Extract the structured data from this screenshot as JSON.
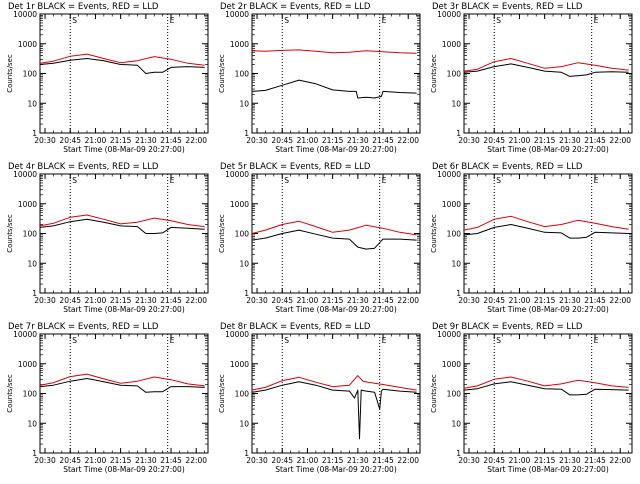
{
  "colors": {
    "events": "#000000",
    "lld": "#e00000",
    "axis": "#000000"
  },
  "chart_data": [
    {
      "type": "line",
      "title": "Det 1r BLACK = Events, RED = LLD",
      "xlabel": "Start Time (08-Mar-09 20:27:00)",
      "ylabel": "Counts/sec",
      "yscale": "log",
      "ylim": [
        1,
        10000
      ],
      "ytick_labels": [
        "1",
        "10",
        "100",
        "1000",
        "10000"
      ],
      "xticks": [
        "20:30",
        "20:45",
        "21:00",
        "21:15",
        "21:30",
        "21:45",
        "22:00"
      ],
      "vlines": [
        "20:45",
        "21:43"
      ],
      "marker_labels": [
        "S",
        "E"
      ],
      "series": [
        {
          "name": "Events",
          "color": "#000000",
          "x": [
            "20:27",
            "20:35",
            "20:45",
            "20:55",
            "21:05",
            "21:15",
            "21:25",
            "21:30",
            "21:35",
            "21:40",
            "21:45",
            "21:55",
            "22:05"
          ],
          "values": [
            200,
            220,
            280,
            320,
            270,
            200,
            190,
            100,
            110,
            110,
            160,
            170,
            160
          ]
        },
        {
          "name": "LLD",
          "color": "#e00000",
          "x": [
            "20:27",
            "20:35",
            "20:45",
            "20:55",
            "21:05",
            "21:15",
            "21:25",
            "21:35",
            "21:45",
            "21:55",
            "22:05"
          ],
          "values": [
            220,
            260,
            380,
            450,
            320,
            230,
            270,
            370,
            300,
            220,
            190
          ]
        }
      ]
    },
    {
      "type": "line",
      "title": "Det 2r BLACK = Events, RED = LLD",
      "xlabel": "Start Time (08-Mar-09 20:27:00)",
      "ylabel": "Counts/sec",
      "yscale": "log",
      "ylim": [
        1,
        10000
      ],
      "ytick_labels": [
        "1",
        "10",
        "100",
        "1000",
        "10000"
      ],
      "xticks": [
        "20:30",
        "20:45",
        "21:00",
        "21:15",
        "21:30",
        "21:45",
        "22:00"
      ],
      "vlines": [
        "20:45",
        "21:43"
      ],
      "marker_labels": [
        "S",
        "E"
      ],
      "series": [
        {
          "name": "Events",
          "color": "#000000",
          "x": [
            "20:27",
            "20:35",
            "20:45",
            "20:55",
            "21:05",
            "21:15",
            "21:25",
            "21:29",
            "21:30",
            "21:35",
            "21:40",
            "21:44",
            "21:45",
            "21:55",
            "22:05"
          ],
          "values": [
            25,
            27,
            40,
            60,
            45,
            28,
            25,
            25,
            15,
            16,
            15,
            17,
            25,
            23,
            22
          ]
        },
        {
          "name": "LLD",
          "color": "#e00000",
          "x": [
            "20:27",
            "20:35",
            "20:45",
            "20:55",
            "21:05",
            "21:15",
            "21:25",
            "21:35",
            "21:45",
            "21:55",
            "22:05"
          ],
          "values": [
            580,
            560,
            600,
            620,
            560,
            500,
            520,
            580,
            540,
            500,
            480
          ]
        }
      ]
    },
    {
      "type": "line",
      "title": "Det 3r BLACK = Events, RED = LLD",
      "xlabel": "Start Time (08-Mar-09 20:27:00)",
      "ylabel": "Counts/sec",
      "yscale": "log",
      "ylim": [
        1,
        10000
      ],
      "ytick_labels": [
        "1",
        "10",
        "100",
        "1000",
        "10000"
      ],
      "xticks": [
        "20:30",
        "20:45",
        "21:00",
        "21:15",
        "21:30",
        "21:45",
        "22:00"
      ],
      "vlines": [
        "20:45",
        "21:43"
      ],
      "marker_labels": [
        "S",
        "E"
      ],
      "series": [
        {
          "name": "Events",
          "color": "#000000",
          "x": [
            "20:27",
            "20:35",
            "20:45",
            "20:55",
            "21:05",
            "21:15",
            "21:25",
            "21:30",
            "21:35",
            "21:40",
            "21:45",
            "21:55",
            "22:05"
          ],
          "values": [
            110,
            120,
            170,
            210,
            160,
            120,
            110,
            80,
            85,
            90,
            110,
            115,
            110
          ]
        },
        {
          "name": "LLD",
          "color": "#e00000",
          "x": [
            "20:27",
            "20:35",
            "20:45",
            "20:55",
            "21:05",
            "21:15",
            "21:25",
            "21:35",
            "21:45",
            "21:55",
            "22:05"
          ],
          "values": [
            120,
            140,
            250,
            320,
            220,
            150,
            170,
            230,
            190,
            150,
            130
          ]
        }
      ]
    },
    {
      "type": "line",
      "title": "Det 4r BLACK = Events, RED = LLD",
      "xlabel": "Start Time (08-Mar-09 20:27:00)",
      "ylabel": "Counts/sec",
      "yscale": "log",
      "ylim": [
        1,
        10000
      ],
      "ytick_labels": [
        "1",
        "10",
        "100",
        "1000",
        "10000"
      ],
      "xticks": [
        "20:30",
        "20:45",
        "21:00",
        "21:15",
        "21:30",
        "21:45",
        "22:00"
      ],
      "vlines": [
        "20:45",
        "21:43"
      ],
      "marker_labels": [
        "S",
        "E"
      ],
      "series": [
        {
          "name": "Events",
          "color": "#000000",
          "x": [
            "20:27",
            "20:35",
            "20:45",
            "20:55",
            "21:05",
            "21:15",
            "21:25",
            "21:30",
            "21:35",
            "21:40",
            "21:45",
            "21:55",
            "22:05"
          ],
          "values": [
            160,
            180,
            250,
            300,
            240,
            180,
            170,
            100,
            100,
            105,
            160,
            150,
            140
          ]
        },
        {
          "name": "LLD",
          "color": "#e00000",
          "x": [
            "20:27",
            "20:35",
            "20:45",
            "20:55",
            "21:05",
            "21:15",
            "21:25",
            "21:35",
            "21:45",
            "21:55",
            "22:05"
          ],
          "values": [
            180,
            220,
            350,
            420,
            300,
            210,
            240,
            330,
            270,
            200,
            170
          ]
        }
      ]
    },
    {
      "type": "line",
      "title": "Det 5r BLACK = Events, RED = LLD",
      "xlabel": "Start Time (08-Mar-09 20:27:00)",
      "ylabel": "Counts/sec",
      "yscale": "log",
      "ylim": [
        1,
        10000
      ],
      "ytick_labels": [
        "1",
        "10",
        "100",
        "1000",
        "10000"
      ],
      "xticks": [
        "20:30",
        "20:45",
        "21:00",
        "21:15",
        "21:30",
        "21:45",
        "22:00"
      ],
      "vlines": [
        "20:45",
        "21:43"
      ],
      "marker_labels": [
        "S",
        "E"
      ],
      "series": [
        {
          "name": "Events",
          "color": "#000000",
          "x": [
            "20:27",
            "20:35",
            "20:45",
            "20:55",
            "21:05",
            "21:15",
            "21:25",
            "21:30",
            "21:35",
            "21:40",
            "21:45",
            "21:55",
            "22:05"
          ],
          "values": [
            60,
            70,
            100,
            130,
            95,
            70,
            65,
            35,
            30,
            32,
            65,
            65,
            60
          ]
        },
        {
          "name": "LLD",
          "color": "#e00000",
          "x": [
            "20:27",
            "20:35",
            "20:45",
            "20:55",
            "21:05",
            "21:15",
            "21:25",
            "21:35",
            "21:45",
            "21:55",
            "22:05"
          ],
          "values": [
            100,
            130,
            200,
            260,
            170,
            110,
            130,
            190,
            150,
            110,
            90
          ]
        }
      ]
    },
    {
      "type": "line",
      "title": "Det 6r BLACK = Events, RED = LLD",
      "xlabel": "Start Time (08-Mar-09 20:27:00)",
      "ylabel": "Counts/sec",
      "yscale": "log",
      "ylim": [
        1,
        10000
      ],
      "ytick_labels": [
        "1",
        "10",
        "100",
        "1000",
        "10000"
      ],
      "xticks": [
        "20:30",
        "20:45",
        "21:00",
        "21:15",
        "21:30",
        "21:45",
        "22:00"
      ],
      "vlines": [
        "20:45",
        "21:43"
      ],
      "marker_labels": [
        "S",
        "E"
      ],
      "series": [
        {
          "name": "Events",
          "color": "#000000",
          "x": [
            "20:27",
            "20:35",
            "20:45",
            "20:55",
            "21:05",
            "21:15",
            "21:25",
            "21:30",
            "21:35",
            "21:40",
            "21:45",
            "21:55",
            "22:05"
          ],
          "values": [
            90,
            100,
            160,
            200,
            150,
            110,
            105,
            70,
            70,
            75,
            110,
            105,
            100
          ]
        },
        {
          "name": "LLD",
          "color": "#e00000",
          "x": [
            "20:27",
            "20:35",
            "20:45",
            "20:55",
            "21:05",
            "21:15",
            "21:25",
            "21:35",
            "21:45",
            "21:55",
            "22:05"
          ],
          "values": [
            130,
            160,
            300,
            380,
            250,
            170,
            200,
            280,
            220,
            170,
            140
          ]
        }
      ]
    },
    {
      "type": "line",
      "title": "Det 7r BLACK = Events, RED = LLD",
      "xlabel": "Start Time (08-Mar-09 20:27:00)",
      "ylabel": "Counts/sec",
      "yscale": "log",
      "ylim": [
        1,
        10000
      ],
      "ytick_labels": [
        "1",
        "10",
        "100",
        "1000",
        "10000"
      ],
      "xticks": [
        "20:30",
        "20:45",
        "21:00",
        "21:15",
        "21:30",
        "21:45",
        "22:00"
      ],
      "vlines": [
        "20:45",
        "21:43"
      ],
      "marker_labels": [
        "S",
        "E"
      ],
      "series": [
        {
          "name": "Events",
          "color": "#000000",
          "x": [
            "20:27",
            "20:35",
            "20:45",
            "20:55",
            "21:05",
            "21:15",
            "21:25",
            "21:30",
            "21:35",
            "21:40",
            "21:45",
            "21:55",
            "22:05"
          ],
          "values": [
            170,
            190,
            260,
            320,
            250,
            190,
            180,
            110,
            115,
            115,
            170,
            170,
            160
          ]
        },
        {
          "name": "LLD",
          "color": "#e00000",
          "x": [
            "20:27",
            "20:35",
            "20:45",
            "20:55",
            "21:05",
            "21:15",
            "21:25",
            "21:35",
            "21:45",
            "21:55",
            "22:05"
          ],
          "values": [
            190,
            230,
            370,
            450,
            310,
            220,
            260,
            360,
            290,
            210,
            180
          ]
        }
      ]
    },
    {
      "type": "line",
      "title": "Det 8r BLACK = Events, RED = LLD",
      "xlabel": "Start Time (08-Mar-09 20:27:00)",
      "ylabel": "Counts/sec",
      "yscale": "log",
      "ylim": [
        1,
        10000
      ],
      "ytick_labels": [
        "1",
        "10",
        "100",
        "1000",
        "10000"
      ],
      "xticks": [
        "20:30",
        "20:45",
        "21:00",
        "21:15",
        "21:30",
        "21:45",
        "22:00"
      ],
      "vlines": [
        "20:45",
        "21:43"
      ],
      "marker_labels": [
        "S",
        "E"
      ],
      "series": [
        {
          "name": "Events",
          "color": "#000000",
          "x": [
            "20:27",
            "20:35",
            "20:45",
            "20:55",
            "21:05",
            "21:15",
            "21:25",
            "21:28",
            "21:30",
            "21:31",
            "21:32",
            "21:35",
            "21:40",
            "21:43",
            "21:44",
            "21:45",
            "21:55",
            "22:05"
          ],
          "values": [
            110,
            130,
            190,
            250,
            190,
            130,
            120,
            70,
            130,
            3,
            130,
            120,
            110,
            30,
            120,
            140,
            120,
            110
          ]
        },
        {
          "name": "LLD",
          "color": "#e00000",
          "x": [
            "20:27",
            "20:35",
            "20:45",
            "20:55",
            "21:05",
            "21:15",
            "21:25",
            "21:30",
            "21:33",
            "21:36",
            "21:45",
            "21:55",
            "22:05"
          ],
          "values": [
            130,
            160,
            270,
            350,
            240,
            170,
            190,
            400,
            260,
            240,
            200,
            160,
            130
          ]
        }
      ]
    },
    {
      "type": "line",
      "title": "Det 9r BLACK = Events, RED = LLD",
      "xlabel": "Start Time (08-Mar-09 20:27:00)",
      "ylabel": "Counts/sec",
      "yscale": "log",
      "ylim": [
        1,
        10000
      ],
      "ytick_labels": [
        "1",
        "10",
        "100",
        "1000",
        "10000"
      ],
      "xticks": [
        "20:30",
        "20:45",
        "21:00",
        "21:15",
        "21:30",
        "21:45",
        "22:00"
      ],
      "vlines": [
        "20:45",
        "21:43"
      ],
      "marker_labels": [
        "S",
        "E"
      ],
      "series": [
        {
          "name": "Events",
          "color": "#000000",
          "x": [
            "20:27",
            "20:35",
            "20:45",
            "20:55",
            "21:05",
            "21:15",
            "21:25",
            "21:30",
            "21:35",
            "21:40",
            "21:45",
            "21:55",
            "22:05"
          ],
          "values": [
            130,
            145,
            210,
            250,
            190,
            145,
            140,
            90,
            90,
            95,
            140,
            135,
            130
          ]
        },
        {
          "name": "LLD",
          "color": "#e00000",
          "x": [
            "20:27",
            "20:35",
            "20:45",
            "20:55",
            "21:05",
            "21:15",
            "21:25",
            "21:35",
            "21:45",
            "21:55",
            "22:05"
          ],
          "values": [
            150,
            180,
            300,
            360,
            260,
            180,
            210,
            280,
            230,
            180,
            160
          ]
        }
      ]
    }
  ]
}
